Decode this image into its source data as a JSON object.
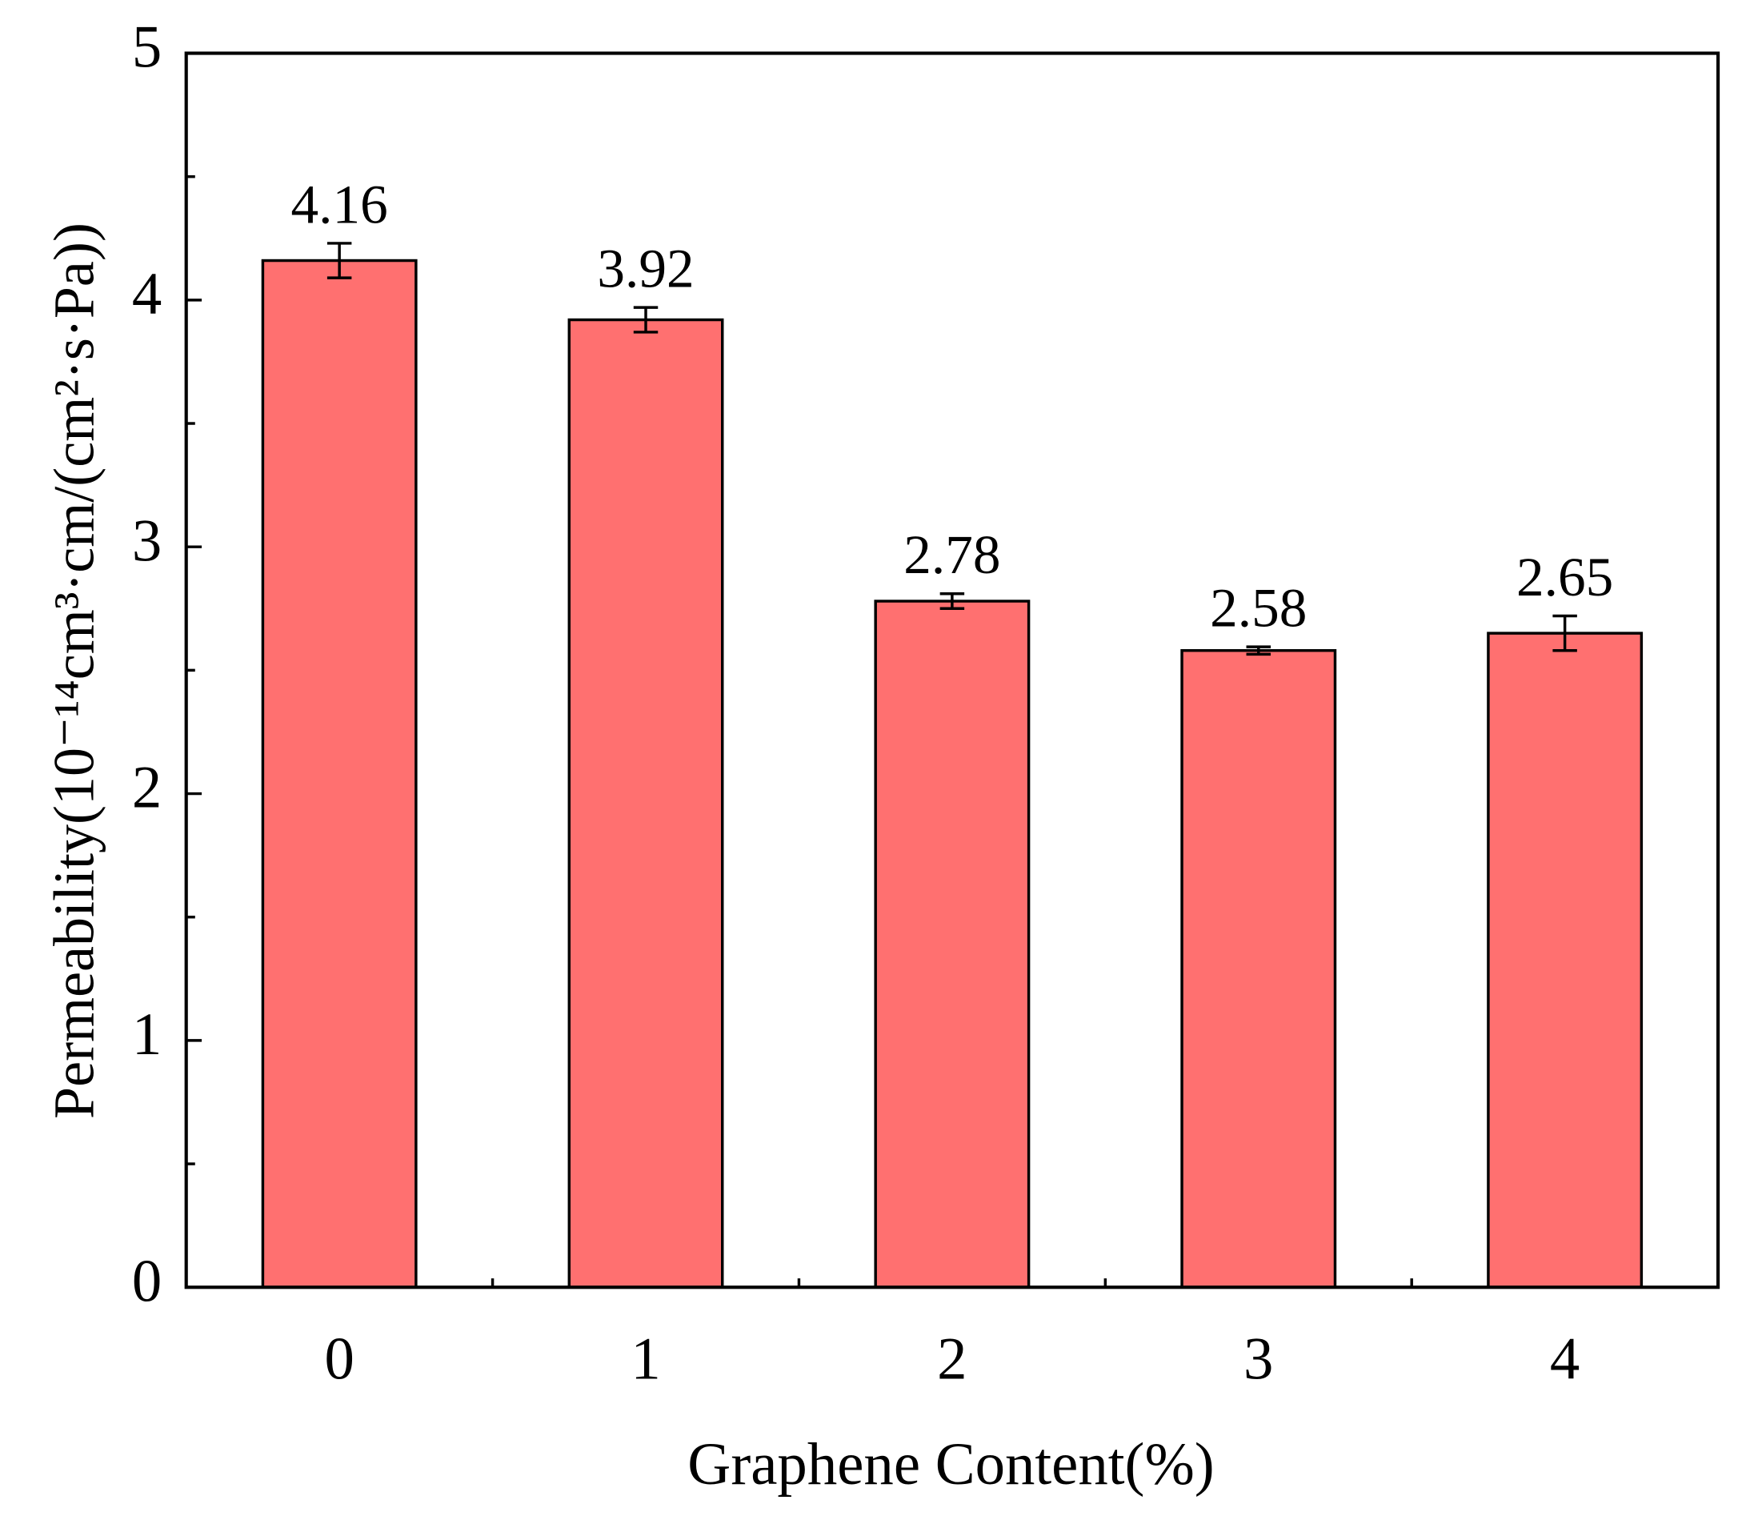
{
  "chart_data": {
    "type": "bar",
    "x_label": "Graphene Content(%)",
    "y_label": "Permeability(10⁻¹⁴cm³·cm/(cm²·s·Pa))",
    "categories": [
      "0",
      "1",
      "2",
      "3",
      "4"
    ],
    "values": [
      4.16,
      3.92,
      2.78,
      2.58,
      2.65
    ],
    "errors": [
      0.07,
      0.05,
      0.03,
      0.015,
      0.07
    ],
    "color": "#ff7070",
    "ylim": [
      0,
      5
    ],
    "yticks": [
      0,
      1,
      2,
      3,
      4,
      5
    ],
    "yminorticks": [
      0.5,
      1.5,
      2.5,
      3.5,
      4.5
    ]
  }
}
